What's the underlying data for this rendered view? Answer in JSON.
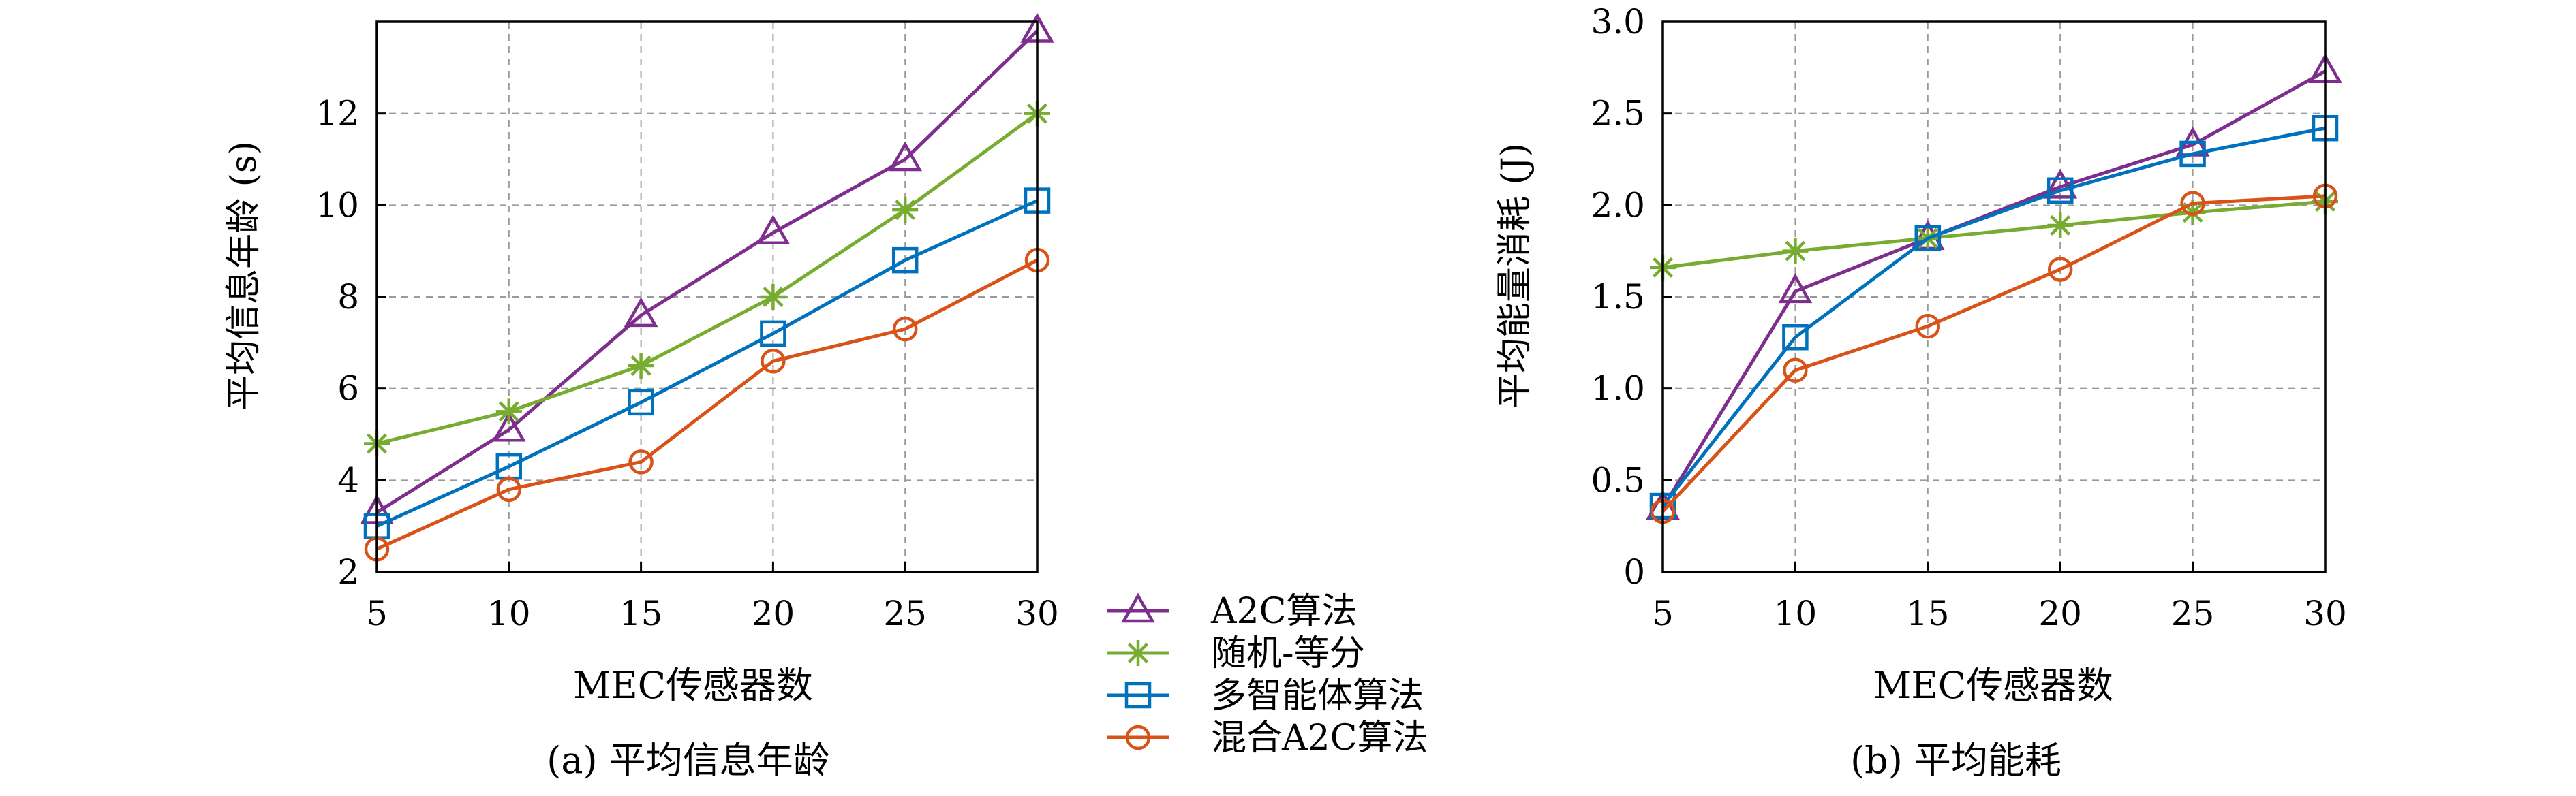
{
  "legend": {
    "placement": "between-panels",
    "entries": [
      {
        "label": "A2C算法",
        "color": "#7E2F8E",
        "marker": "triangle"
      },
      {
        "label": "随机-等分",
        "color": "#77AC30",
        "marker": "asterisk"
      },
      {
        "label": "多智能体算法",
        "color": "#0072BD",
        "marker": "square"
      },
      {
        "label": "混合A2C算法",
        "color": "#D95319",
        "marker": "circle"
      }
    ]
  },
  "chart_data": [
    {
      "type": "line",
      "title": "(a) 平均信息年龄",
      "xlabel": "MEC传感器数",
      "ylabel": "平均信息年龄 (s)",
      "x": [
        5,
        10,
        15,
        20,
        25,
        30
      ],
      "xticks": [
        5,
        10,
        15,
        20,
        25,
        30
      ],
      "xtick_labels": [
        "5",
        "10",
        "15",
        "20",
        "25",
        "30"
      ],
      "yticks": [
        2,
        4,
        6,
        8,
        10,
        12
      ],
      "ytick_labels": [
        "2",
        "4",
        "6",
        "8",
        "10",
        "12"
      ],
      "xlim": [
        5,
        30
      ],
      "ylim": [
        2,
        14
      ],
      "grid": true,
      "series": [
        {
          "name": "A2C算法",
          "values": [
            3.3,
            5.1,
            7.6,
            9.4,
            11.0,
            13.8
          ]
        },
        {
          "name": "随机-等分",
          "values": [
            4.8,
            5.5,
            6.5,
            8.0,
            9.9,
            12.0
          ]
        },
        {
          "name": "多智能体算法",
          "values": [
            3.0,
            4.3,
            5.7,
            7.2,
            8.8,
            10.1
          ]
        },
        {
          "name": "混合A2C算法",
          "values": [
            2.5,
            3.8,
            4.4,
            6.6,
            7.3,
            8.8
          ]
        }
      ]
    },
    {
      "type": "line",
      "title": "(b) 平均能耗",
      "xlabel": "MEC传感器数",
      "ylabel": "平均能量消耗 (J)",
      "x": [
        5,
        10,
        15,
        20,
        25,
        30
      ],
      "xticks": [
        5,
        10,
        15,
        20,
        25,
        30
      ],
      "xtick_labels": [
        "5",
        "10",
        "15",
        "20",
        "25",
        "30"
      ],
      "yticks": [
        0,
        0.5,
        1.0,
        1.5,
        2.0,
        2.5,
        3.0
      ],
      "ytick_labels": [
        "0",
        "0.5",
        "1.0",
        "1.5",
        "2.0",
        "2.5",
        "3.0"
      ],
      "xlim": [
        5,
        30
      ],
      "ylim": [
        0,
        3.0
      ],
      "grid": true,
      "series": [
        {
          "name": "A2C算法",
          "values": [
            0.35,
            1.53,
            1.82,
            2.1,
            2.33,
            2.73
          ]
        },
        {
          "name": "随机-等分",
          "values": [
            1.66,
            1.75,
            1.82,
            1.89,
            1.96,
            2.02
          ]
        },
        {
          "name": "多智能体算法",
          "values": [
            0.36,
            1.28,
            1.82,
            2.08,
            2.28,
            2.42
          ]
        },
        {
          "name": "混合A2C算法",
          "values": [
            0.33,
            1.1,
            1.34,
            1.65,
            2.01,
            2.05
          ]
        }
      ]
    }
  ]
}
